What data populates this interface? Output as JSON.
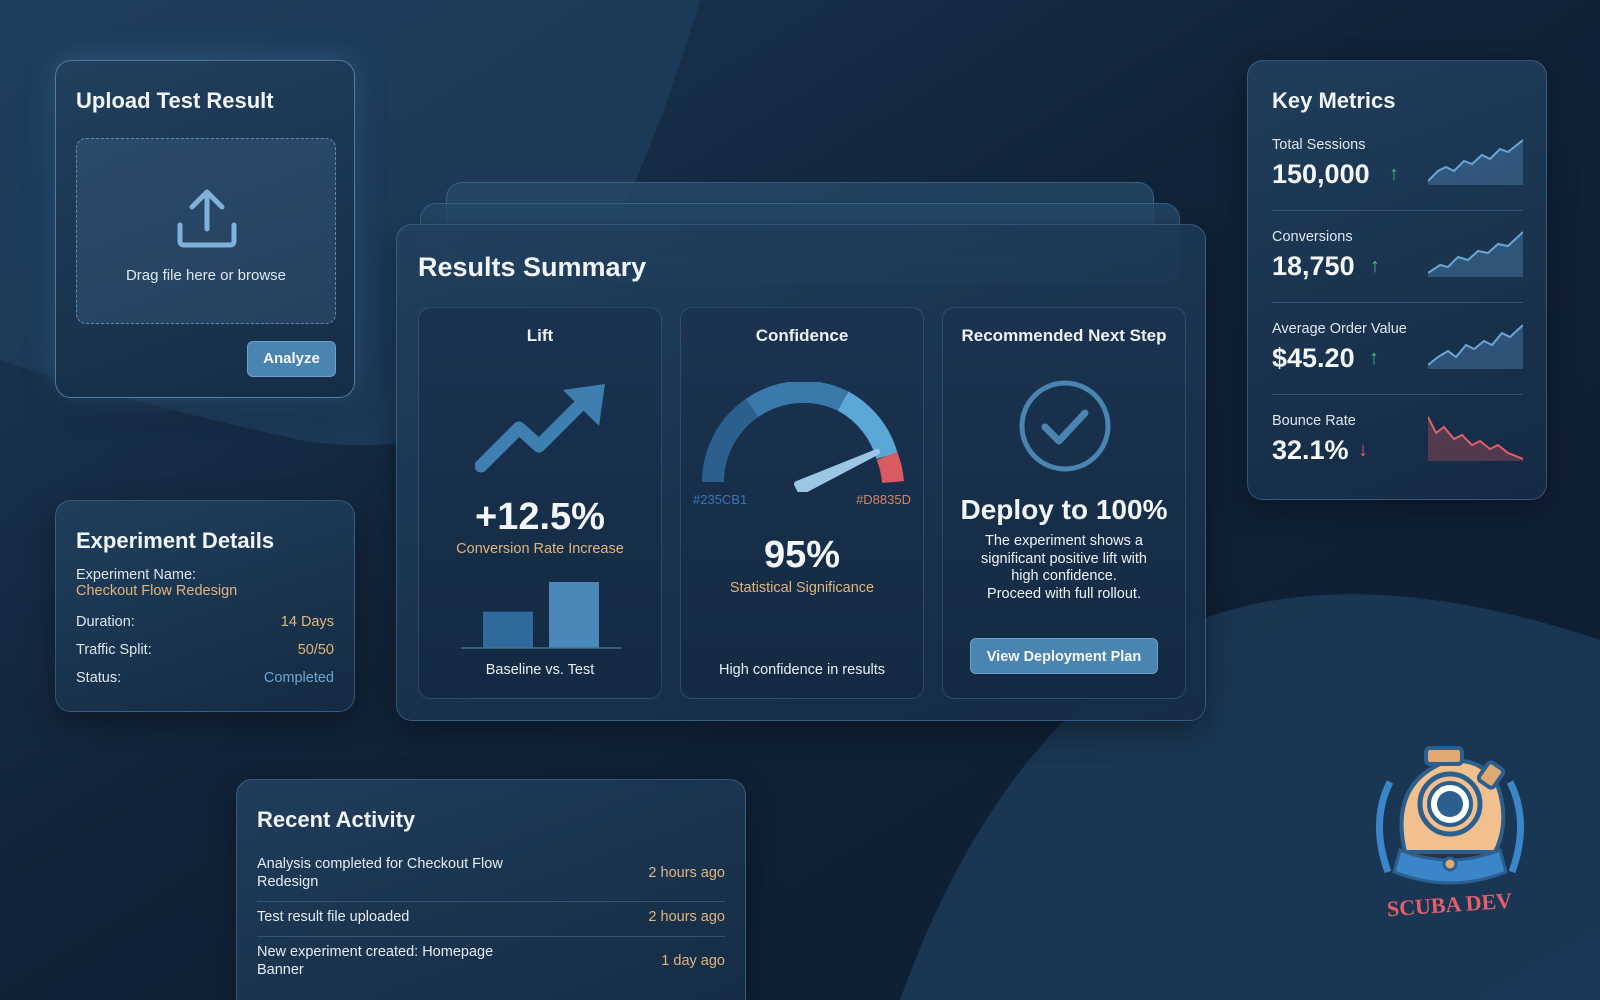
{
  "upload": {
    "title": "Upload Test Result",
    "dropzone_text": "Drag file here or browse",
    "analyze_label": "Analyze"
  },
  "details": {
    "title": "Experiment Details",
    "name_label": "Experiment Name:",
    "name_value": "Checkout Flow Redesign",
    "rows": [
      {
        "label": "Duration:",
        "value": "14 Days"
      },
      {
        "label": "Traffic Split:",
        "value": "50/50"
      },
      {
        "label": "Status:",
        "value": "Completed"
      }
    ]
  },
  "results": {
    "title": "Results Summary",
    "lift": {
      "title": "Lift",
      "value": "+12.5%",
      "subtitle": "Conversion Rate Increase",
      "footer": "Baseline vs. Test",
      "bars": [
        0.55,
        1.0
      ]
    },
    "confidence": {
      "title": "Confidence",
      "gauge_left_label": "#235CB1",
      "gauge_right_label": "#D8835D",
      "value": "95%",
      "subtitle": "Statistical Significance",
      "footer": "High confidence in results",
      "level": 0.95
    },
    "next_step": {
      "title": "Recommended Next Step",
      "headline": "Deploy to 100%",
      "description": "The experiment shows a\nsignificant positive lift with\nhigh confidence.\nProceed with full rollout.",
      "button_label": "View Deployment Plan"
    }
  },
  "metrics": {
    "title": "Key Metrics",
    "items": [
      {
        "label": "Total Sessions",
        "value": "150,000",
        "trend": "↑",
        "direction": "up"
      },
      {
        "label": "Conversions",
        "value": "18,750",
        "trend": "↑",
        "direction": "up"
      },
      {
        "label": "Average Order Value",
        "value": "$45.20",
        "trend": "↑",
        "direction": "up"
      },
      {
        "label": "Bounce Rate",
        "value": "32.1%",
        "trend": "↓",
        "direction": "down"
      }
    ]
  },
  "activity": {
    "title": "Recent Activity",
    "items": [
      {
        "text": "Analysis completed for Checkout Flow Redesign",
        "when": "2 hours ago"
      },
      {
        "text": "Test result file uploaded",
        "when": "2 hours ago"
      },
      {
        "text": "New experiment created: Homepage Banner",
        "when": "1 day ago"
      }
    ]
  },
  "logo": {
    "text": "SCUBA DEV",
    "icon": "diving-helmet-icon"
  },
  "colors": {
    "accent": "#4a84b0",
    "orange": "#e0b57e",
    "up": "#3fbf7f",
    "down": "#e0606a"
  }
}
